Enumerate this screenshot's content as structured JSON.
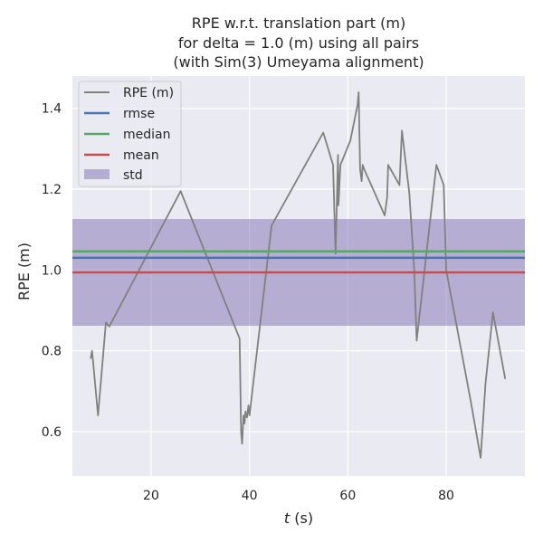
{
  "chart_data": {
    "type": "line",
    "title_lines": [
      "RPE w.r.t. translation part (m)",
      "for delta = 1.0 (m) using all pairs",
      "(with Sim(3) Umeyama alignment)"
    ],
    "xlabel_italic": "t",
    "xlabel_unit": " (s)",
    "ylabel": "RPE (m)",
    "xlim": [
      4,
      96
    ],
    "ylim": [
      0.49,
      1.48
    ],
    "xticks": [
      20,
      40,
      60,
      80
    ],
    "yticks": [
      0.6,
      0.8,
      1.0,
      1.2,
      1.4
    ],
    "ytick_labels": [
      "0.6",
      "0.8",
      "1.0",
      "1.2",
      "1.4"
    ],
    "grid": true,
    "legend_position": "top-left",
    "series": [
      {
        "name": "RPE (m)",
        "color": "#808080",
        "x": [
          7.7,
          8.0,
          8.3,
          9.2,
          10.8,
          11.5,
          26.0,
          38.0,
          38.3,
          38.5,
          38.8,
          39.0,
          39.2,
          39.5,
          39.8,
          40.0,
          44.5,
          55.0,
          57.0,
          57.5,
          58.0,
          58.1,
          58.4,
          58.5,
          60.5,
          62.0,
          62.2,
          62.5,
          62.8,
          63.0,
          63.3,
          67.5,
          68.0,
          68.2,
          70.5,
          71.0,
          72.5,
          73.5,
          74.0,
          78.0,
          79.5,
          80.0,
          85.0,
          87.0,
          88.0,
          89.5,
          92.0
        ],
        "y": [
          0.78,
          0.8,
          0.76,
          0.64,
          0.87,
          0.86,
          1.195,
          0.83,
          0.6,
          0.57,
          0.64,
          0.62,
          0.65,
          0.635,
          0.665,
          0.64,
          1.11,
          1.34,
          1.26,
          1.04,
          1.285,
          1.16,
          1.24,
          1.26,
          1.32,
          1.41,
          1.44,
          1.25,
          1.22,
          1.26,
          1.25,
          1.135,
          1.18,
          1.26,
          1.21,
          1.345,
          1.19,
          1.0,
          0.825,
          1.26,
          1.21,
          1.0,
          0.675,
          0.535,
          0.72,
          0.895,
          0.73
        ]
      },
      {
        "name": "rmse",
        "color": "#4c72b0",
        "value": 1.03
      },
      {
        "name": "median",
        "color": "#55a868",
        "value": 1.046
      },
      {
        "name": "mean",
        "color": "#c44e52",
        "value": 0.994
      },
      {
        "name": "std",
        "color": "#8172b2",
        "range": [
          0.862,
          1.126
        ]
      }
    ]
  }
}
